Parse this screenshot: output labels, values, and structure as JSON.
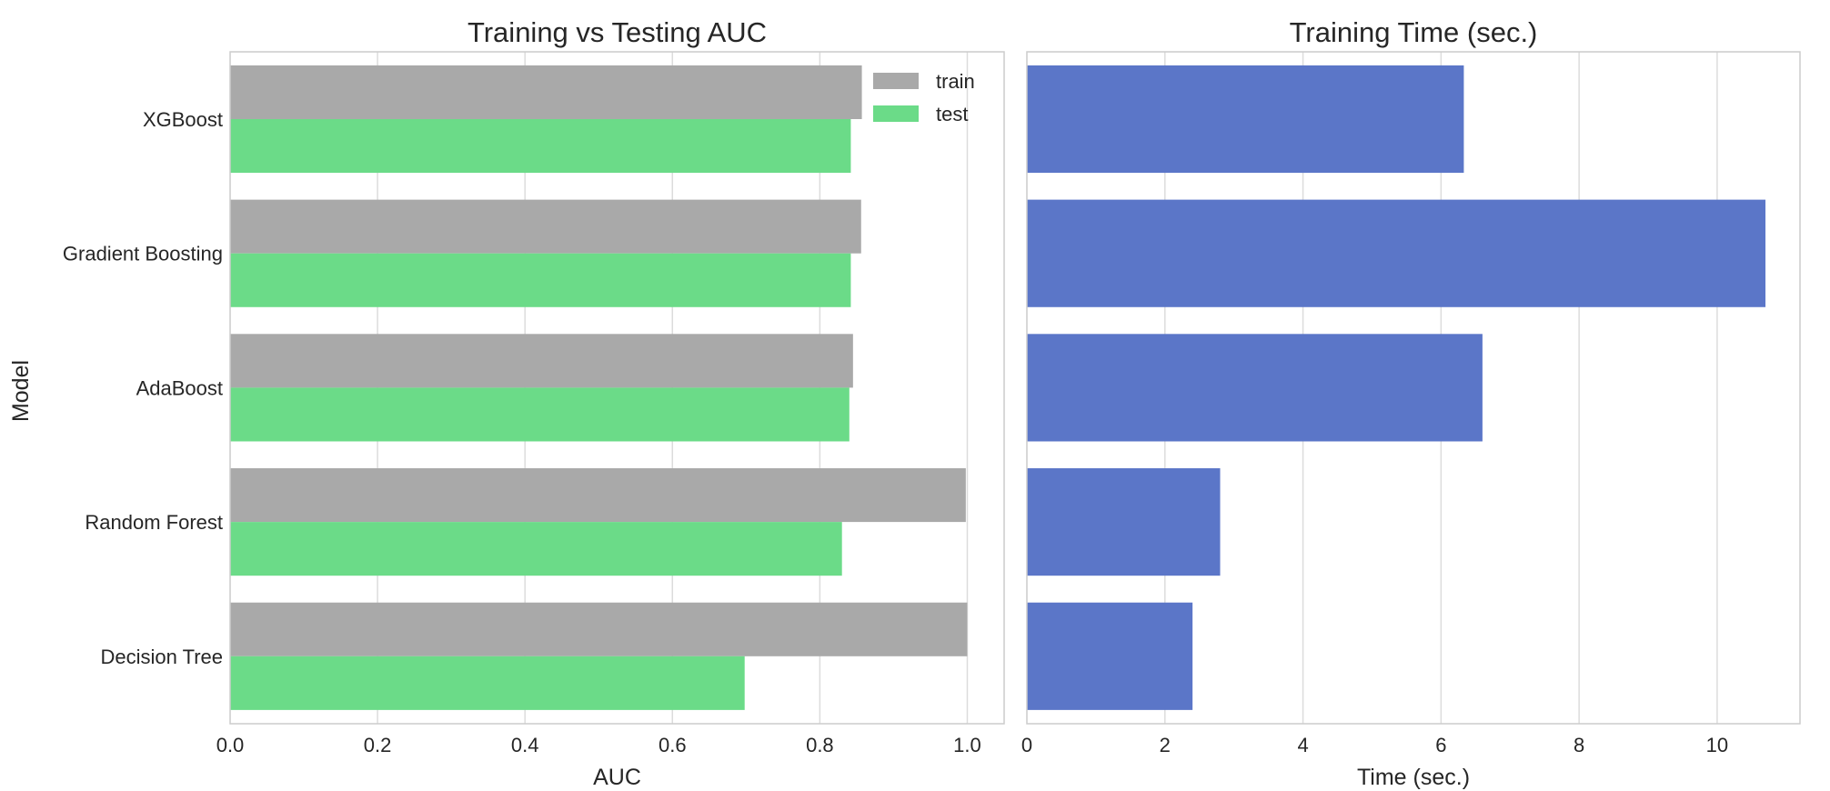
{
  "ylabel": "Model",
  "legend_labels": [
    "train",
    "test"
  ],
  "chart_data": [
    {
      "type": "bar",
      "orientation": "horizontal",
      "title": "Training vs Testing AUC",
      "xlabel": "AUC",
      "ylabel": "Model",
      "categories": [
        "XGBoost",
        "Gradient Boosting",
        "AdaBoost",
        "Random Forest",
        "Decision Tree"
      ],
      "series": [
        {
          "name": "train",
          "color": "#a9a9a9",
          "values": [
            0.857,
            0.856,
            0.845,
            0.998,
            1.0
          ]
        },
        {
          "name": "test",
          "color": "#6bdb88",
          "values": [
            0.842,
            0.842,
            0.84,
            0.83,
            0.698
          ]
        }
      ],
      "xlim": [
        0,
        1.05
      ],
      "xticks": [
        "0.0",
        "0.2",
        "0.4",
        "0.6",
        "0.8",
        "1.0"
      ],
      "xtick_values": [
        0,
        0.2,
        0.4,
        0.6,
        0.8,
        1.0
      ],
      "grid": true,
      "legend_position": "top-right"
    },
    {
      "type": "bar",
      "orientation": "horizontal",
      "title": "Training Time (sec.)",
      "xlabel": "Time (sec.)",
      "categories": [
        "XGBoost",
        "Gradient Boosting",
        "AdaBoost",
        "Random Forest",
        "Decision Tree"
      ],
      "series": [
        {
          "color": "#5b76c8",
          "values": [
            6.33,
            10.7,
            6.6,
            2.8,
            2.4
          ]
        }
      ],
      "xlim": [
        0,
        11.2
      ],
      "xticks": [
        "0",
        "2",
        "4",
        "6",
        "8",
        "10"
      ],
      "xtick_values": [
        0,
        2,
        4,
        6,
        8,
        10
      ],
      "grid": true
    }
  ]
}
